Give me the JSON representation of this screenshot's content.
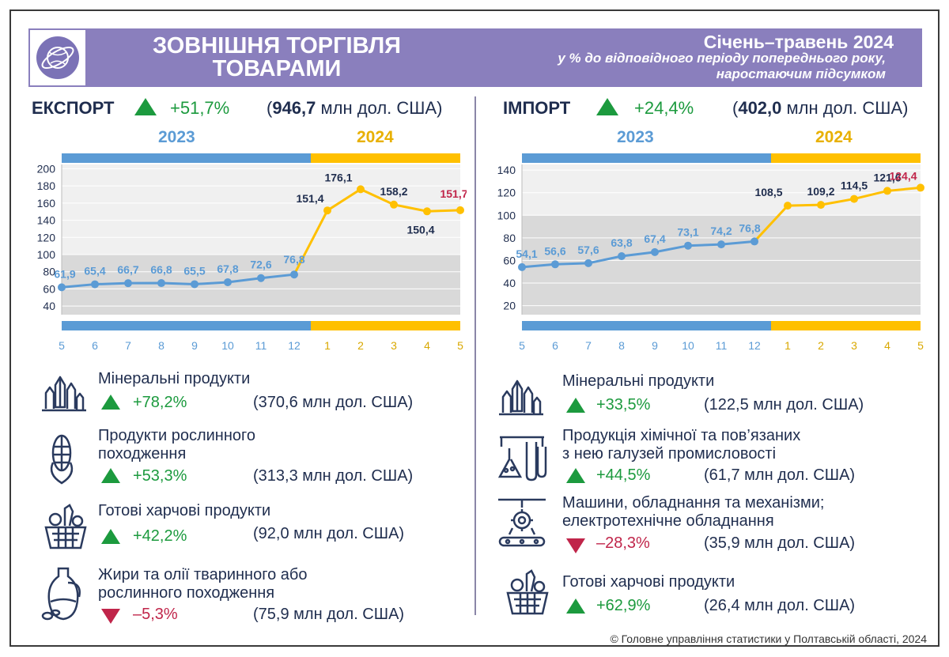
{
  "header": {
    "title": "ЗОВНІШНЯ ТОРГІВЛЯ ТОВАРАМИ",
    "period": "Січень–травень 2024",
    "subtitle_line1": "у % до відповідного періоду попереднього року,",
    "subtitle_line2": "наростаючим  підсумком"
  },
  "export": {
    "title": "ЕКСПОРТ",
    "change": "+51,7%",
    "total_value": "946,7",
    "total_unit": "млн дол. США",
    "year_left": "2023",
    "year_right": "2024",
    "items": [
      {
        "name_line1": "Мінеральні продукти",
        "name_line2": "",
        "change": "+78,2%",
        "direction": "up",
        "value": "(370,6 млн дол. США)",
        "icon": "crystals-icon"
      },
      {
        "name_line1": "Продукти рослинного",
        "name_line2": "походження",
        "change": "+53,3%",
        "direction": "up",
        "value": "(313,3 млн дол. США)",
        "icon": "corn-icon"
      },
      {
        "name_line1": "Готові харчові продукти",
        "name_line2": "",
        "change": "+42,2%",
        "direction": "up",
        "value": "(92,0 млн дол. США)",
        "icon": "food-basket-icon"
      },
      {
        "name_line1": "Жири та олії тваринного або",
        "name_line2": "рослинного походження",
        "change": "–5,3%",
        "direction": "down",
        "value": "(75,9 млн дол. США)",
        "icon": "oil-bottle-icon"
      }
    ]
  },
  "import": {
    "title": "ІМПОРТ",
    "change": "+24,4%",
    "total_value": "402,0",
    "total_unit": "млн дол. США",
    "year_left": "2023",
    "year_right": "2024",
    "items": [
      {
        "name_line1": "Мінеральні продукти",
        "name_line2": "",
        "change": "+33,5%",
        "direction": "up",
        "value": "(122,5 млн дол. США)",
        "icon": "crystals-icon"
      },
      {
        "name_line1": "Продукція хімічної та пов’язаних",
        "name_line2": "з нею галузей промисловості",
        "change": "+44,5%",
        "direction": "up",
        "value": "(61,7 млн дол. США)",
        "icon": "chemistry-flask-icon"
      },
      {
        "name_line1": "Машини, обладнання та механізми;",
        "name_line2": "електротехнічне обладнання",
        "change": "–28,3%",
        "direction": "down",
        "value": "(35,9 млн дол. США)",
        "icon": "machinery-gear-icon"
      },
      {
        "name_line1": "Готові харчові продукти",
        "name_line2": "",
        "change": "+62,9%",
        "direction": "up",
        "value": "(26,4 млн дол. США)",
        "icon": "food-basket-icon"
      }
    ]
  },
  "footer": "© Головне управління статистики у Полтавській області, 2024",
  "colors": {
    "header": "#8a7fbd",
    "year2023": "#5b9bd5",
    "year2024": "#ffc000",
    "up": "#1c9a3e",
    "down": "#c0254a",
    "label2023": "#5b9bd5",
    "label2024": "#1f2d4e",
    "latest": "#c0254a"
  },
  "chart_data": [
    {
      "type": "line",
      "name": "export",
      "x": [
        "5",
        "6",
        "7",
        "8",
        "9",
        "10",
        "11",
        "12",
        "1",
        "2",
        "3",
        "4",
        "5"
      ],
      "series": [
        {
          "values": [
            61.9,
            65.4,
            66.7,
            66.8,
            65.5,
            67.8,
            72.6,
            76.8,
            151.4,
            176.1,
            158.2,
            150.4,
            151.7
          ]
        }
      ],
      "labels": [
        "61,9",
        "65,4",
        "66,7",
        "66,8",
        "65,5",
        "67,8",
        "72,6",
        "76,8",
        "151,4",
        "176,1",
        "158,2",
        "150,4",
        "151,7"
      ],
      "yticks": [
        "200",
        "180",
        "160",
        "140",
        "120",
        "100",
        "80",
        "60",
        "40"
      ],
      "ylim": [
        30,
        205
      ],
      "baseline": 100,
      "year_split_index": 8
    },
    {
      "type": "line",
      "name": "import",
      "x": [
        "5",
        "6",
        "7",
        "8",
        "9",
        "10",
        "11",
        "12",
        "1",
        "2",
        "3",
        "4",
        "5"
      ],
      "series": [
        {
          "values": [
            54.1,
            56.6,
            57.6,
            63.8,
            67.4,
            73.1,
            74.2,
            76.8,
            108.5,
            109.2,
            114.5,
            121.6,
            124.4
          ]
        }
      ],
      "labels": [
        "54,1",
        "56,6",
        "57,6",
        "63,8",
        "67,4",
        "73,1",
        "74,2",
        "76,8",
        "108,5",
        "109,2",
        "114,5",
        "121,6",
        "124,4"
      ],
      "yticks": [
        "140",
        "120",
        "100",
        "80",
        "60",
        "40",
        "20"
      ],
      "ylim": [
        12,
        145
      ],
      "baseline": 100,
      "year_split_index": 8
    }
  ]
}
